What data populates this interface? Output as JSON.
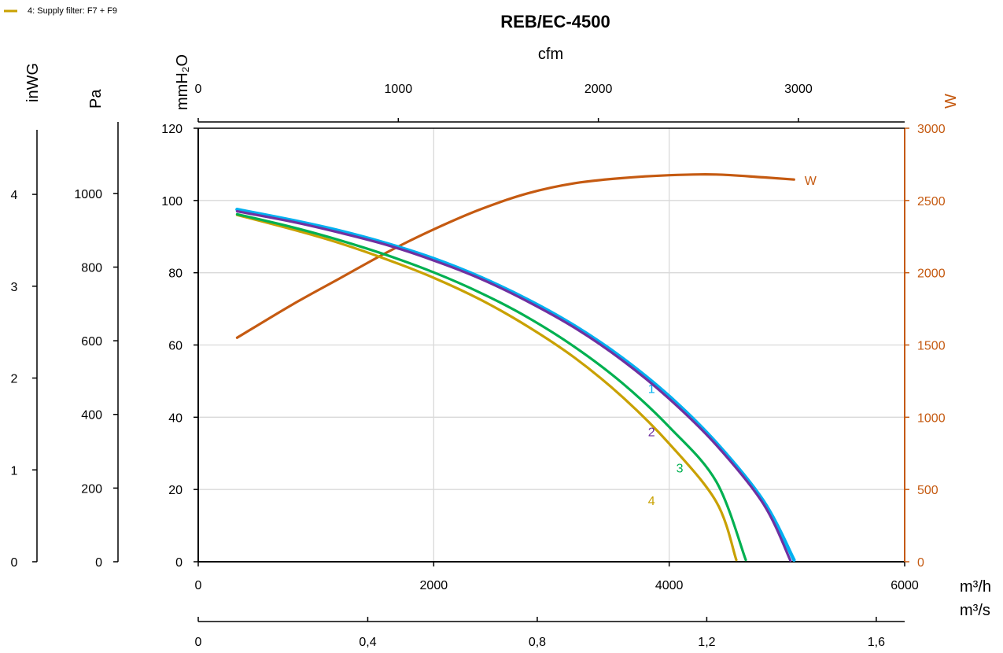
{
  "chart_data": {
    "type": "line",
    "title": "REB/EC-4500",
    "legend": {
      "placement": "top-left",
      "entries": [
        "4: Supply filter: F7 + F9"
      ]
    },
    "grid": true,
    "colors": {
      "1": "#00B0F0",
      "2": "#7030A0",
      "3": "#00B050",
      "4": "#C9A100",
      "W": "#C55A11"
    },
    "axes": {
      "x_primary": {
        "label": "m³/h",
        "range": [
          0,
          6000
        ],
        "ticks": [
          0,
          2000,
          4000,
          6000
        ],
        "tick_labels": [
          "0",
          "2000",
          "4000",
          "6000"
        ]
      },
      "x_top": {
        "label": "cfm",
        "range": [
          0,
          3531
        ],
        "ticks": [
          0,
          1000,
          2000,
          3000
        ],
        "tick_labels": [
          "0",
          "1000",
          "2000",
          "3000"
        ]
      },
      "x_bottom": {
        "label": "m³/s",
        "range": [
          0,
          1.667
        ],
        "ticks": [
          0,
          0.4,
          0.8,
          1.2,
          1.6
        ],
        "tick_labels": [
          "0",
          "0,4",
          "0,8",
          "1,2",
          "1,6"
        ]
      },
      "y_primary": {
        "label": "mmH₂O",
        "range": [
          0,
          120
        ],
        "ticks": [
          0,
          20,
          40,
          60,
          80,
          100,
          120
        ],
        "tick_labels": [
          "0",
          "20",
          "40",
          "60",
          "80",
          "100",
          "120"
        ]
      },
      "y_pa": {
        "label": "Pa",
        "range": [
          0,
          1177
        ],
        "ticks": [
          0,
          200,
          400,
          600,
          800,
          1000
        ],
        "tick_labels": [
          "0",
          "200",
          "400",
          "600",
          "800",
          "1000"
        ]
      },
      "y_inwg": {
        "label": "inWG",
        "range": [
          0,
          4.72
        ],
        "ticks": [
          0,
          1,
          2,
          3,
          4
        ],
        "tick_labels": [
          "0",
          "1",
          "2",
          "3",
          "4"
        ]
      },
      "y_right": {
        "label": "W",
        "range": [
          0,
          3000
        ],
        "ticks": [
          0,
          500,
          1000,
          1500,
          2000,
          2500,
          3000
        ],
        "tick_labels": [
          "0",
          "500",
          "1000",
          "1500",
          "2000",
          "2500",
          "3000"
        ]
      }
    },
    "series": [
      {
        "name": "1",
        "label_at": [
          3850,
          48
        ],
        "x": [
          330,
          800,
          1200,
          1600,
          2000,
          2400,
          2800,
          3200,
          3600,
          4000,
          4400,
          4800,
          5060
        ],
        "y": [
          97.5,
          94.5,
          91.6,
          88.1,
          83.9,
          78.7,
          72.5,
          65.2,
          56.4,
          45.8,
          32.9,
          16.8,
          0.5
        ]
      },
      {
        "name": "2",
        "label_at": [
          3850,
          36
        ],
        "x": [
          330,
          800,
          1200,
          1600,
          2000,
          2400,
          2800,
          3200,
          3600,
          4000,
          4400,
          4800,
          5030
        ],
        "y": [
          97.0,
          94.1,
          91.1,
          87.7,
          83.4,
          78.3,
          72.0,
          64.7,
          55.8,
          45.1,
          32.3,
          16.0,
          0.3
        ]
      },
      {
        "name": "3",
        "label_at": [
          4090,
          26
        ],
        "x": [
          330,
          800,
          1200,
          1600,
          2000,
          2400,
          2800,
          3200,
          3600,
          4000,
          4400,
          4650
        ],
        "y": [
          96.2,
          92.6,
          89.0,
          84.9,
          80.1,
          74.4,
          67.6,
          59.4,
          49.5,
          37.3,
          22.2,
          0.5
        ]
      },
      {
        "name": "4",
        "label_at": [
          3850,
          17
        ],
        "x": [
          330,
          800,
          1200,
          1600,
          2000,
          2400,
          2800,
          3200,
          3600,
          4000,
          4400,
          4570
        ],
        "y": [
          96.0,
          92.0,
          88.2,
          83.7,
          78.6,
          72.5,
          65.1,
          56.4,
          45.7,
          32.7,
          16.6,
          0.5
        ]
      },
      {
        "name": "W",
        "axis": "y_right",
        "label_at": [
          5200,
          2640
        ],
        "x": [
          330,
          800,
          1200,
          1600,
          2000,
          2400,
          2800,
          3200,
          3600,
          4000,
          4400,
          4800,
          5060
        ],
        "y": [
          1550,
          1780,
          1960,
          2140,
          2300,
          2440,
          2550,
          2620,
          2655,
          2675,
          2680,
          2660,
          2645
        ]
      }
    ]
  }
}
